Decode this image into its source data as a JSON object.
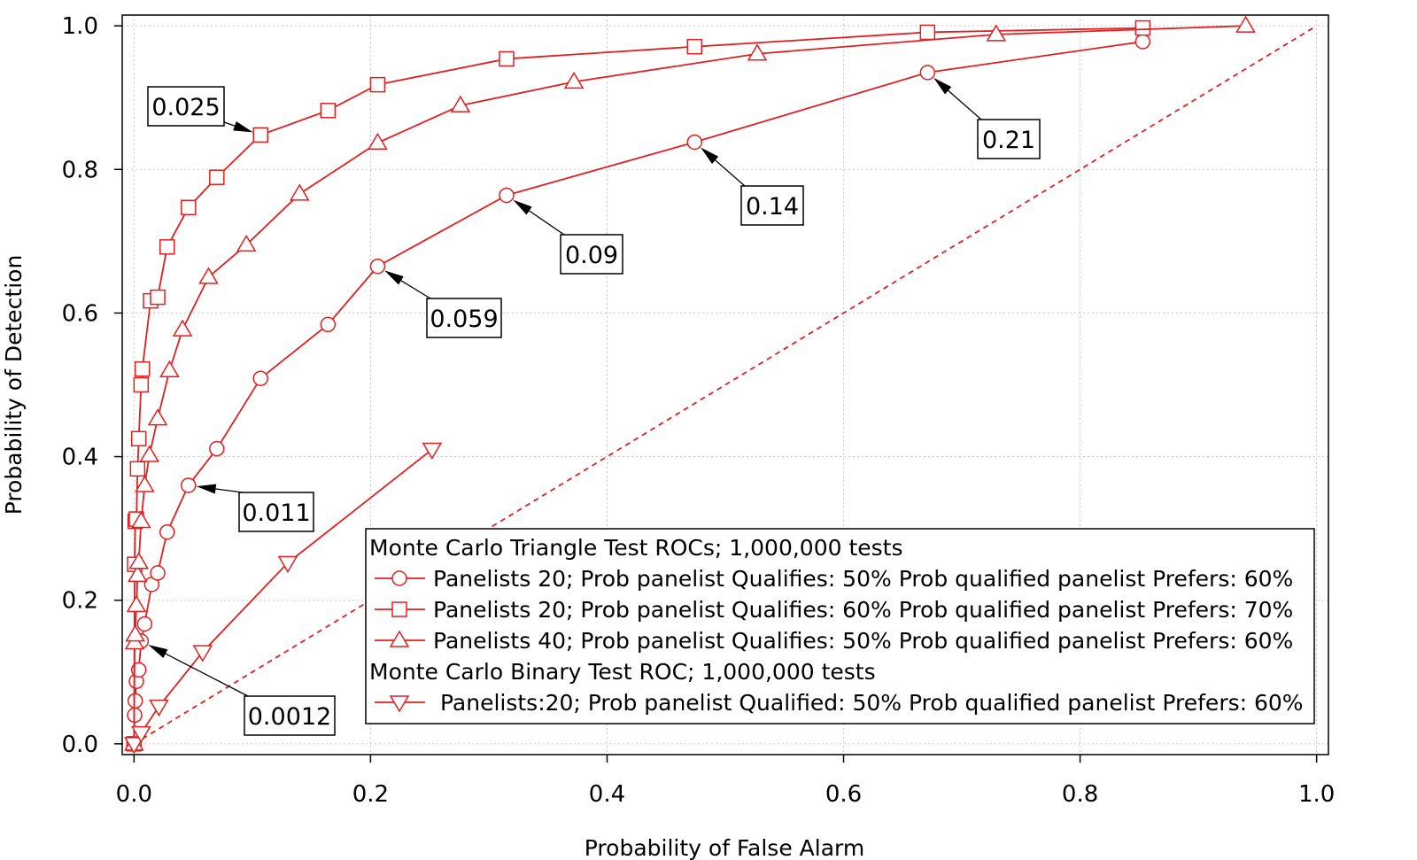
{
  "chart_data": {
    "type": "line",
    "xlabel": "Probability of False Alarm",
    "ylabel": "Probability of Detection",
    "xlim": [
      -0.01,
      1.01
    ],
    "ylim": [
      -0.015,
      1.015
    ],
    "xticks": [
      0.0,
      0.2,
      0.4,
      0.6,
      0.8,
      1.0
    ],
    "yticks": [
      0.0,
      0.2,
      0.4,
      0.6,
      0.8,
      1.0
    ],
    "xtick_labels": [
      "0.0",
      "0.2",
      "0.4",
      "0.6",
      "0.8",
      "1.0"
    ],
    "ytick_labels": [
      "0.0",
      "0.2",
      "0.4",
      "0.6",
      "0.8",
      "1.0"
    ],
    "grid": true,
    "color": "#e02020",
    "reference_line": {
      "name": "chance",
      "style": "dashed",
      "x": [
        0,
        1
      ],
      "y": [
        0,
        1
      ]
    },
    "series": [
      {
        "name": "Panelists 20; Prob panelist Qualifies: 50% Prob qualified panelist Prefers: 60%",
        "marker": "circle",
        "x": [
          0.0,
          0.0005,
          0.001,
          0.002,
          0.004,
          0.006,
          0.009,
          0.015,
          0.02,
          0.028,
          0.046,
          0.07,
          0.107,
          0.164,
          0.206,
          0.315,
          0.474,
          0.671,
          0.853
        ],
        "y": [
          0.0,
          0.04,
          0.06,
          0.087,
          0.103,
          0.143,
          0.167,
          0.222,
          0.238,
          0.295,
          0.36,
          0.411,
          0.509,
          0.584,
          0.665,
          0.764,
          0.838,
          0.935,
          0.978
        ]
      },
      {
        "name": "Panelists 20; Prob panelist Qualifies: 60% Prob qualified panelist Prefers: 70%",
        "marker": "square",
        "x": [
          0.0,
          0.0005,
          0.001,
          0.002,
          0.003,
          0.004,
          0.006,
          0.007,
          0.014,
          0.02,
          0.028,
          0.046,
          0.07,
          0.107,
          0.164,
          0.206,
          0.315,
          0.474,
          0.671,
          0.853
        ],
        "y": [
          0.0,
          0.25,
          0.31,
          0.313,
          0.383,
          0.425,
          0.5,
          0.522,
          0.617,
          0.622,
          0.692,
          0.747,
          0.789,
          0.848,
          0.882,
          0.918,
          0.954,
          0.971,
          0.991,
          0.997
        ]
      },
      {
        "name": "Panelists 40; Prob panelist Qualifies: 50% Prob qualified panelist Prefers: 60%",
        "marker": "triangle-up",
        "x": [
          0.0,
          0.0005,
          0.001,
          0.002,
          0.003,
          0.004,
          0.006,
          0.009,
          0.013,
          0.02,
          0.03,
          0.041,
          0.063,
          0.095,
          0.14,
          0.206,
          0.276,
          0.372,
          0.527,
          0.729,
          0.94
        ],
        "y": [
          0.0,
          0.141,
          0.152,
          0.193,
          0.235,
          0.253,
          0.31,
          0.36,
          0.402,
          0.453,
          0.52,
          0.577,
          0.65,
          0.695,
          0.766,
          0.837,
          0.889,
          0.922,
          0.961,
          0.988,
          1.0
        ]
      },
      {
        "name": "Panelists:20; Prob panelist Qualified: 50% Prob qualified panelist Prefers: 60%",
        "marker": "triangle-down",
        "x": [
          0.0,
          0.006,
          0.021,
          0.058,
          0.13,
          0.252
        ],
        "y": [
          0.0,
          0.015,
          0.052,
          0.128,
          0.252,
          0.41
        ]
      }
    ],
    "annotations": [
      {
        "text": "0.025",
        "point": [
          0.107,
          0.848
        ]
      },
      {
        "text": "0.21",
        "point": [
          0.671,
          0.935
        ]
      },
      {
        "text": "0.14",
        "point": [
          0.474,
          0.838
        ]
      },
      {
        "text": "0.09",
        "point": [
          0.315,
          0.764
        ]
      },
      {
        "text": "0.059",
        "point": [
          0.206,
          0.665
        ]
      },
      {
        "text": "0.011",
        "point": [
          0.046,
          0.36
        ]
      },
      {
        "text": "0.0012",
        "point": [
          0.006,
          0.143
        ]
      }
    ],
    "legend": {
      "position": "lower-right",
      "entries": [
        {
          "type": "heading",
          "text": "Monte Carlo Triangle Test ROCs; 1,000,000 tests"
        },
        {
          "type": "series",
          "series_index": 0,
          "marker": "circle",
          "text": "Panelists 20; Prob panelist Qualifies: 50% Prob qualified panelist Prefers: 60%"
        },
        {
          "type": "series",
          "series_index": 1,
          "marker": "square",
          "text": "Panelists 20; Prob panelist Qualifies: 60% Prob qualified panelist Prefers: 70%"
        },
        {
          "type": "series",
          "series_index": 2,
          "marker": "triangle-up",
          "text": "Panelists 40; Prob panelist Qualifies: 50% Prob qualified panelist Prefers: 60%"
        },
        {
          "type": "heading",
          "text": "Monte Carlo Binary Test ROC; 1,000,000 tests"
        },
        {
          "type": "series",
          "series_index": 3,
          "marker": "triangle-down",
          "text": " Panelists:20; Prob panelist Qualified: 50% Prob qualified panelist Prefers: 60%"
        }
      ]
    }
  }
}
